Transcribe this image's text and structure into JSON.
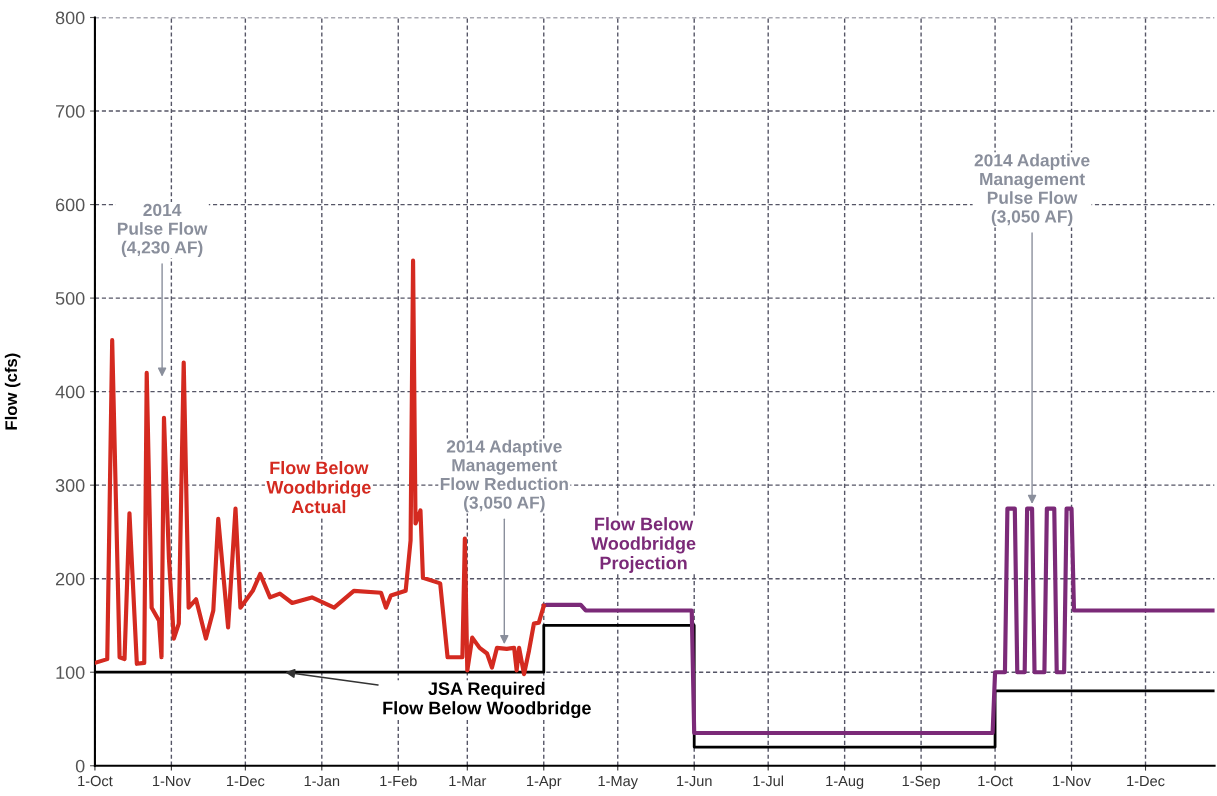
{
  "chart_data": {
    "type": "line",
    "ylabel": "Flow (cfs)",
    "xlim": [
      "2013-10-01",
      "2014-12-29"
    ],
    "ylim": [
      0,
      800
    ],
    "yticks": [
      0,
      100,
      200,
      300,
      400,
      500,
      600,
      700,
      800
    ],
    "xticks": [
      {
        "value": "2013-10-01",
        "label": "1-Oct"
      },
      {
        "value": "2013-11-01",
        "label": "1-Nov"
      },
      {
        "value": "2013-12-01",
        "label": "1-Dec"
      },
      {
        "value": "2014-01-01",
        "label": "1-Jan"
      },
      {
        "value": "2014-02-01",
        "label": "1-Feb"
      },
      {
        "value": "2014-03-01",
        "label": "1-Mar"
      },
      {
        "value": "2014-04-01",
        "label": "1-Apr"
      },
      {
        "value": "2014-05-01",
        "label": "1-May"
      },
      {
        "value": "2014-06-01",
        "label": "1-Jun"
      },
      {
        "value": "2014-07-01",
        "label": "1-Jul"
      },
      {
        "value": "2014-08-01",
        "label": "1-Aug"
      },
      {
        "value": "2014-09-01",
        "label": "1-Sep"
      },
      {
        "value": "2014-10-01",
        "label": "1-Oct"
      },
      {
        "value": "2014-11-01",
        "label": "1-Nov"
      },
      {
        "value": "2014-12-01",
        "label": "1-Dec"
      }
    ],
    "grid": true,
    "legend": false,
    "marker": "none",
    "line_style": "solid",
    "series": [
      {
        "name": "Flow Below\nWoodbridge\nActual",
        "color": "#d42a20",
        "x": [
          "2013-10-01",
          "2013-10-06",
          "2013-10-08",
          "2013-10-11",
          "2013-10-13",
          "2013-10-15",
          "2013-10-18",
          "2013-10-21",
          "2013-10-22",
          "2013-10-24",
          "2013-10-27",
          "2013-10-28",
          "2013-10-29",
          "2013-10-31",
          "2013-11-02",
          "2013-11-04",
          "2013-11-06",
          "2013-11-08",
          "2013-11-11",
          "2013-11-15",
          "2013-11-18",
          "2013-11-20",
          "2013-11-24",
          "2013-11-27",
          "2013-11-29",
          "2013-12-04",
          "2013-12-07",
          "2013-12-11",
          "2013-12-15",
          "2013-12-20",
          "2013-12-28",
          "2014-01-06",
          "2014-01-14",
          "2014-01-25",
          "2014-01-27",
          "2014-01-29",
          "2014-02-04",
          "2014-02-06",
          "2014-02-07",
          "2014-02-08",
          "2014-02-10",
          "2014-02-11",
          "2014-02-18",
          "2014-02-21",
          "2014-02-27",
          "2014-02-28",
          "2014-03-01",
          "2014-03-03",
          "2014-03-06",
          "2014-03-09",
          "2014-03-11",
          "2014-03-13",
          "2014-03-17",
          "2014-03-20",
          "2014-03-21",
          "2014-03-22",
          "2014-03-24",
          "2014-03-26",
          "2014-03-28",
          "2014-03-30",
          "2014-04-01"
        ],
        "values": [
          110,
          114,
          455,
          116,
          114,
          270,
          109,
          110,
          420,
          169,
          155,
          116,
          372,
          222,
          136,
          152,
          431,
          169,
          178,
          136,
          166,
          264,
          148,
          275,
          169,
          187,
          205,
          180,
          184,
          174,
          180,
          169,
          187,
          185,
          169,
          182,
          187,
          241,
          540,
          259,
          273,
          201,
          195,
          116,
          116,
          243,
          102,
          137,
          126,
          120,
          105,
          126,
          125,
          126,
          102,
          126,
          98,
          123,
          152,
          153,
          171
        ]
      },
      {
        "name": "Flow Below\nWoodbridge\nProjection",
        "color": "#7b2a78",
        "x": [
          "2014-04-01",
          "2014-04-02",
          "2014-04-16",
          "2014-04-18",
          "2014-05-31",
          "2014-06-01",
          "2014-09-30",
          "2014-10-01",
          "2014-10-05",
          "2014-10-06",
          "2014-10-09",
          "2014-10-10",
          "2014-10-13",
          "2014-10-14",
          "2014-10-16",
          "2014-10-17",
          "2014-10-21",
          "2014-10-22",
          "2014-10-25",
          "2014-10-26",
          "2014-10-29",
          "2014-10-30",
          "2014-11-01",
          "2014-11-02",
          "2014-12-29"
        ],
        "values": [
          171,
          172,
          172,
          166,
          166,
          35,
          35,
          100,
          100,
          275,
          275,
          100,
          100,
          275,
          275,
          100,
          100,
          275,
          275,
          100,
          100,
          275,
          275,
          166,
          166
        ]
      },
      {
        "name": "JSA Required\nFlow Below Woodbridge",
        "color": "#000000",
        "type": "step",
        "x": [
          "2013-10-01",
          "2014-04-01",
          "2014-06-01",
          "2014-10-01",
          "2014-12-29"
        ],
        "values": [
          100,
          150,
          20,
          80,
          80
        ]
      }
    ],
    "annotations": [
      "2014\nPulse Flow\n(4,230 AF)",
      {
        "text": "2014 Adaptive\nManagement\nFlow Reduction\n(3,050 AF)",
        "x": "2014-03-16",
        "y": 130
      },
      {
        "text": "2014 Adaptive\nManagement\nPulse Flow\n(3,050 AF)",
        "x": "2014-10-16",
        "y": 280
      }
    ]
  }
}
